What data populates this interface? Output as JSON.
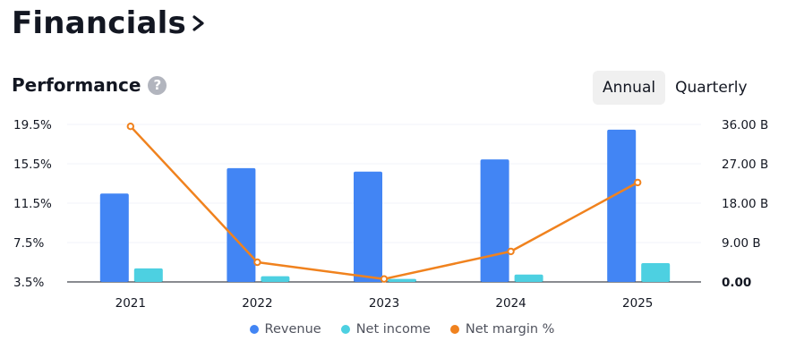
{
  "header": {
    "title": "Financials"
  },
  "section": {
    "title": "Performance",
    "help_icon": "?"
  },
  "tabs": [
    {
      "label": "Annual",
      "active": true
    },
    {
      "label": "Quarterly",
      "active": false
    }
  ],
  "colors": {
    "revenue": "#4285f4",
    "net_income": "#4dd0e1",
    "net_margin": "#f0821e"
  },
  "chart_data": {
    "type": "bar",
    "categories": [
      "2021",
      "2022",
      "2023",
      "2024",
      "2025"
    ],
    "series": [
      {
        "name": "Revenue",
        "type": "bar",
        "axis": "right",
        "values": [
          20.2,
          26.0,
          25.2,
          28.0,
          34.8
        ]
      },
      {
        "name": "Net income",
        "type": "bar",
        "axis": "right",
        "values": [
          3.1,
          1.3,
          0.7,
          1.7,
          4.3
        ]
      },
      {
        "name": "Net margin %",
        "type": "line",
        "axis": "left",
        "values": [
          19.3,
          5.5,
          3.8,
          6.6,
          13.6
        ]
      }
    ],
    "left_axis": {
      "ticks": [
        "19.5%",
        "15.5%",
        "11.5%",
        "7.5%",
        "3.5%"
      ],
      "ylim": [
        3.5,
        19.5
      ]
    },
    "right_axis": {
      "ticks": [
        "36.00 B",
        "27.00 B",
        "18.00 B",
        "9.00 B",
        "0.00"
      ],
      "ylim": [
        0,
        36
      ]
    },
    "legend_position": "bottom",
    "grid": true
  }
}
